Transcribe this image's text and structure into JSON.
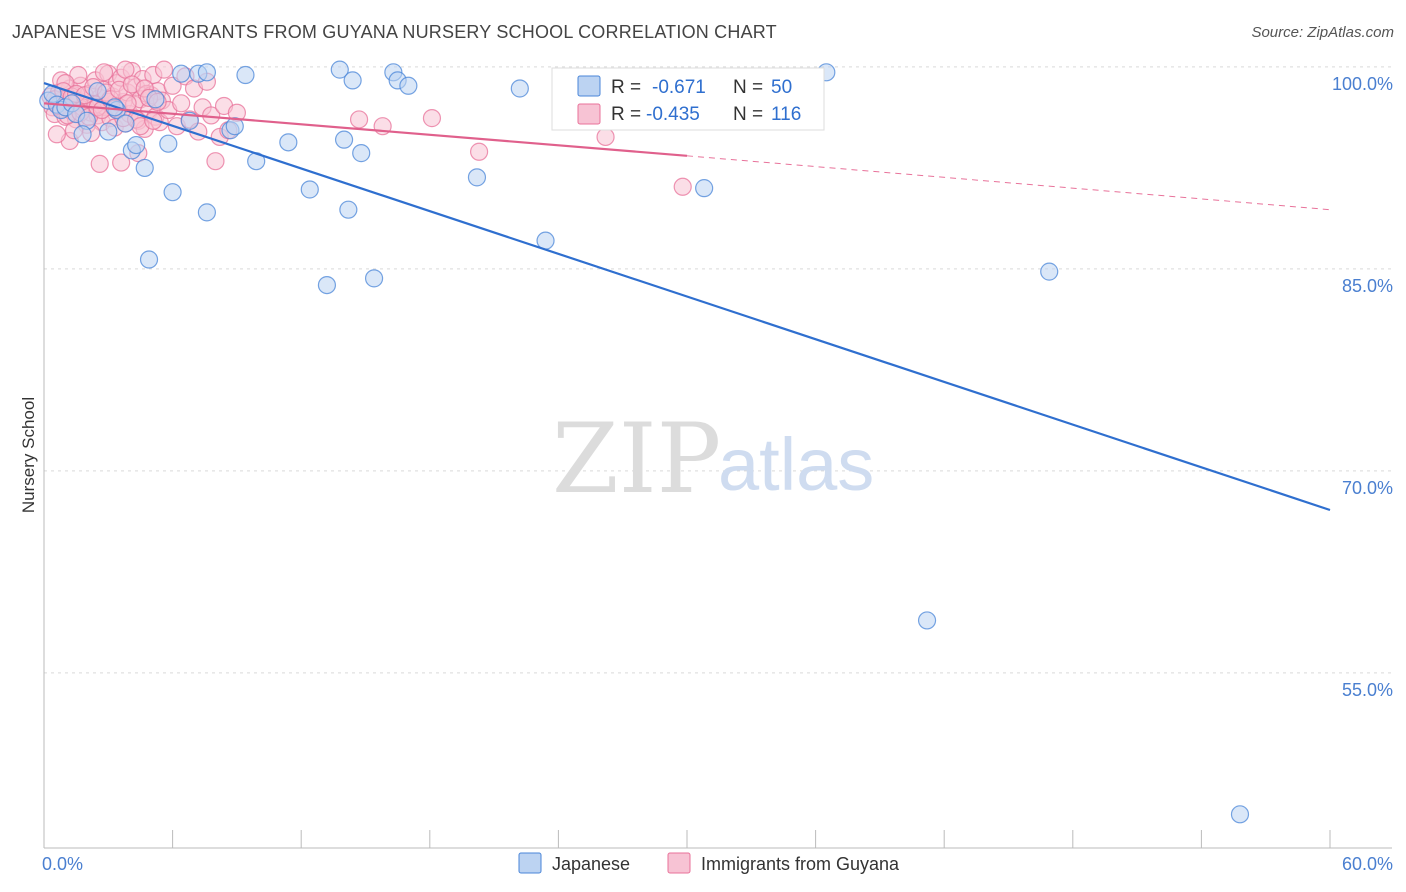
{
  "title": "JAPANESE VS IMMIGRANTS FROM GUYANA NURSERY SCHOOL CORRELATION CHART",
  "source": "Source: ZipAtlas.com",
  "watermark": {
    "zip": "ZIP",
    "atlas": "atlas"
  },
  "colors": {
    "japanese": "#4a86d8",
    "guyana": "#e8729a",
    "japanese_fill": "#bcd3f2",
    "guyana_fill": "#f7c3d4"
  },
  "chart_data": {
    "type": "scatter",
    "xlabel": "",
    "ylabel": "Nursery School",
    "xlim": [
      0,
      60
    ],
    "ylim": [
      42,
      102
    ],
    "x_tick_labels": [
      {
        "value": 0,
        "label": "0.0%"
      },
      {
        "value": 60,
        "label": "60.0%"
      }
    ],
    "y_tick_labels": [
      {
        "value": 100,
        "label": "100.0%"
      },
      {
        "value": 85,
        "label": "85.0%"
      },
      {
        "value": 70,
        "label": "70.0%"
      },
      {
        "value": 55,
        "label": "55.0%"
      }
    ],
    "legend": {
      "placement": "top-center",
      "entries": [
        {
          "r_label": "R = ",
          "r_value": "-0.671",
          "n_label": "N = ",
          "n_value": "50"
        },
        {
          "r_label": "R = ",
          "r_value": "-0.435",
          "n_label": "N = ",
          "n_value": "116"
        }
      ]
    },
    "series": [
      {
        "name": "Japanese",
        "trend": {
          "x": [
            0,
            60
          ],
          "y": [
            98.8,
            67.1
          ]
        },
        "points": [
          [
            0.2,
            97.5
          ],
          [
            0.4,
            98.0
          ],
          [
            0.6,
            97.2
          ],
          [
            0.8,
            96.8
          ],
          [
            1.0,
            97.0
          ],
          [
            1.3,
            97.3
          ],
          [
            1.5,
            96.5
          ],
          [
            2.0,
            96.0
          ],
          [
            2.5,
            98.2
          ],
          [
            3.0,
            95.2
          ],
          [
            3.4,
            96.8
          ],
          [
            3.8,
            95.8
          ],
          [
            4.1,
            93.8
          ],
          [
            4.3,
            94.2
          ],
          [
            4.7,
            92.5
          ],
          [
            5.2,
            97.6
          ],
          [
            5.8,
            94.3
          ],
          [
            6.0,
            90.7
          ],
          [
            6.4,
            99.5
          ],
          [
            6.8,
            96.0
          ],
          [
            7.2,
            99.5
          ],
          [
            7.6,
            89.2
          ],
          [
            7.6,
            99.6
          ],
          [
            8.7,
            95.3
          ],
          [
            8.9,
            95.6
          ],
          [
            9.4,
            99.4
          ],
          [
            9.9,
            93.0
          ],
          [
            11.4,
            94.4
          ],
          [
            12.4,
            90.9
          ],
          [
            13.2,
            83.8
          ],
          [
            13.8,
            99.8
          ],
          [
            14.0,
            94.6
          ],
          [
            14.2,
            89.4
          ],
          [
            14.4,
            99.0
          ],
          [
            14.8,
            93.6
          ],
          [
            15.4,
            84.3
          ],
          [
            16.3,
            99.6
          ],
          [
            16.5,
            99.0
          ],
          [
            17.0,
            98.6
          ],
          [
            20.2,
            91.8
          ],
          [
            22.2,
            98.4
          ],
          [
            23.4,
            87.1
          ],
          [
            30.8,
            91.0
          ],
          [
            36.5,
            99.6
          ],
          [
            41.2,
            58.9
          ],
          [
            46.9,
            84.8
          ],
          [
            55.8,
            44.5
          ],
          [
            4.9,
            85.7
          ],
          [
            3.3,
            97.0
          ],
          [
            1.8,
            95.0
          ]
        ]
      },
      {
        "name": "Immigrants from Guyana",
        "trend": {
          "x": [
            0,
            30
          ],
          "y": [
            97.3,
            93.4
          ]
        },
        "trend_extension": {
          "x": [
            30,
            60
          ],
          "y": [
            93.4,
            89.4
          ]
        },
        "points": [
          [
            0.3,
            97.8
          ],
          [
            0.4,
            97.0
          ],
          [
            0.5,
            96.5
          ],
          [
            0.6,
            97.4
          ],
          [
            0.7,
            98.1
          ],
          [
            0.8,
            96.9
          ],
          [
            0.9,
            97.6
          ],
          [
            1.0,
            96.3
          ],
          [
            1.1,
            97.2
          ],
          [
            1.2,
            98.4
          ],
          [
            1.3,
            96.7
          ],
          [
            1.4,
            97.9
          ],
          [
            1.5,
            96.1
          ],
          [
            1.6,
            97.5
          ],
          [
            1.7,
            98.6
          ],
          [
            1.8,
            96.8
          ],
          [
            1.9,
            97.3
          ],
          [
            2.0,
            95.7
          ],
          [
            2.1,
            98.0
          ],
          [
            2.2,
            96.6
          ],
          [
            2.3,
            97.1
          ],
          [
            2.4,
            99.0
          ],
          [
            2.5,
            96.4
          ],
          [
            2.6,
            97.7
          ],
          [
            2.7,
            95.9
          ],
          [
            2.8,
            98.3
          ],
          [
            2.9,
            97.0
          ],
          [
            3.0,
            99.5
          ],
          [
            3.1,
            96.2
          ],
          [
            3.2,
            97.8
          ],
          [
            3.3,
            95.5
          ],
          [
            3.4,
            98.8
          ],
          [
            3.5,
            96.9
          ],
          [
            3.6,
            99.2
          ],
          [
            3.7,
            97.4
          ],
          [
            3.8,
            95.8
          ],
          [
            3.9,
            98.1
          ],
          [
            4.0,
            96.5
          ],
          [
            4.1,
            99.7
          ],
          [
            4.2,
            97.2
          ],
          [
            4.3,
            98.5
          ],
          [
            4.4,
            96.0
          ],
          [
            4.5,
            97.6
          ],
          [
            4.6,
            99.1
          ],
          [
            4.7,
            95.4
          ],
          [
            4.8,
            98.0
          ],
          [
            4.9,
            96.7
          ],
          [
            5.0,
            97.9
          ],
          [
            5.1,
            99.4
          ],
          [
            5.2,
            96.3
          ],
          [
            5.3,
            98.2
          ],
          [
            5.4,
            95.9
          ],
          [
            5.5,
            97.5
          ],
          [
            5.6,
            99.8
          ],
          [
            5.8,
            96.8
          ],
          [
            6.0,
            98.6
          ],
          [
            6.2,
            95.6
          ],
          [
            6.4,
            97.3
          ],
          [
            6.6,
            99.3
          ],
          [
            6.8,
            96.1
          ],
          [
            7.0,
            98.4
          ],
          [
            7.2,
            95.2
          ],
          [
            7.4,
            97.0
          ],
          [
            7.6,
            98.9
          ],
          [
            7.8,
            96.4
          ],
          [
            8.0,
            93.0
          ],
          [
            8.2,
            94.8
          ],
          [
            8.4,
            97.1
          ],
          [
            8.6,
            95.3
          ],
          [
            9.0,
            96.6
          ],
          [
            1.2,
            94.5
          ],
          [
            1.4,
            95.3
          ],
          [
            2.6,
            92.8
          ],
          [
            3.6,
            92.9
          ],
          [
            4.4,
            93.6
          ],
          [
            2.2,
            95.1
          ],
          [
            0.8,
            99.0
          ],
          [
            1.6,
            99.4
          ],
          [
            2.8,
            99.6
          ],
          [
            3.8,
            99.8
          ],
          [
            14.7,
            96.1
          ],
          [
            15.8,
            95.6
          ],
          [
            18.1,
            96.2
          ],
          [
            20.3,
            93.7
          ],
          [
            26.2,
            94.8
          ],
          [
            29.8,
            91.1
          ],
          [
            0.6,
            95.0
          ],
          [
            1.0,
            98.8
          ],
          [
            1.8,
            97.0
          ],
          [
            2.4,
            97.2
          ],
          [
            3.0,
            97.4
          ],
          [
            0.5,
            97.6
          ],
          [
            0.7,
            97.1
          ],
          [
            0.9,
            98.2
          ],
          [
            1.1,
            96.4
          ],
          [
            1.3,
            97.8
          ],
          [
            1.5,
            98.0
          ],
          [
            1.7,
            96.6
          ],
          [
            1.9,
            97.9
          ],
          [
            2.1,
            96.3
          ],
          [
            2.3,
            98.5
          ],
          [
            2.5,
            97.0
          ],
          [
            2.7,
            96.8
          ],
          [
            2.9,
            98.1
          ],
          [
            3.1,
            97.6
          ],
          [
            3.3,
            96.9
          ],
          [
            3.5,
            98.3
          ],
          [
            3.7,
            96.2
          ],
          [
            3.9,
            97.3
          ],
          [
            4.1,
            98.7
          ],
          [
            4.3,
            96.1
          ],
          [
            4.5,
            95.6
          ],
          [
            4.7,
            98.4
          ],
          [
            4.9,
            97.7
          ],
          [
            5.1,
            96.0
          ],
          [
            5.3,
            97.4
          ]
        ]
      }
    ],
    "grid": true
  }
}
